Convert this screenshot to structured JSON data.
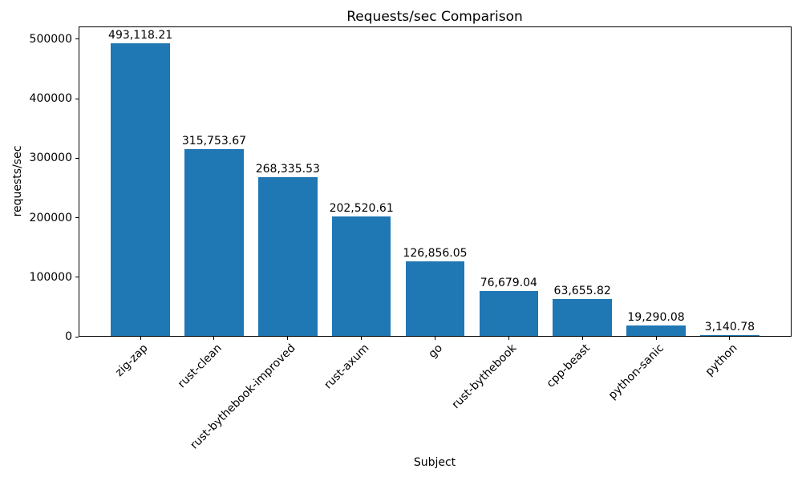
{
  "chart_data": {
    "type": "bar",
    "title": "Requests/sec Comparison",
    "xlabel": "Subject",
    "ylabel": "requests/sec",
    "categories": [
      "zig-zap",
      "rust-clean",
      "rust-bythebook-improved",
      "rust-axum",
      "go",
      "rust-bythebook",
      "cpp-beast",
      "python-sanic",
      "python"
    ],
    "values": [
      493118.21,
      315753.67,
      268335.53,
      202520.61,
      126856.05,
      76679.04,
      63655.82,
      19290.08,
      3140.78
    ],
    "value_labels": [
      "493,118.21",
      "315,753.67",
      "268,335.53",
      "202,520.61",
      "126,856.05",
      "76,679.04",
      "63,655.82",
      "19,290.08",
      "3,140.78"
    ],
    "yticks": [
      0,
      100000,
      200000,
      300000,
      400000,
      500000
    ],
    "ytick_labels": [
      "0",
      "100000",
      "200000",
      "300000",
      "400000",
      "500000"
    ],
    "ylim": [
      0,
      521563
    ],
    "bar_color": "#1f77b4",
    "grid": false,
    "legend_position": "none"
  }
}
